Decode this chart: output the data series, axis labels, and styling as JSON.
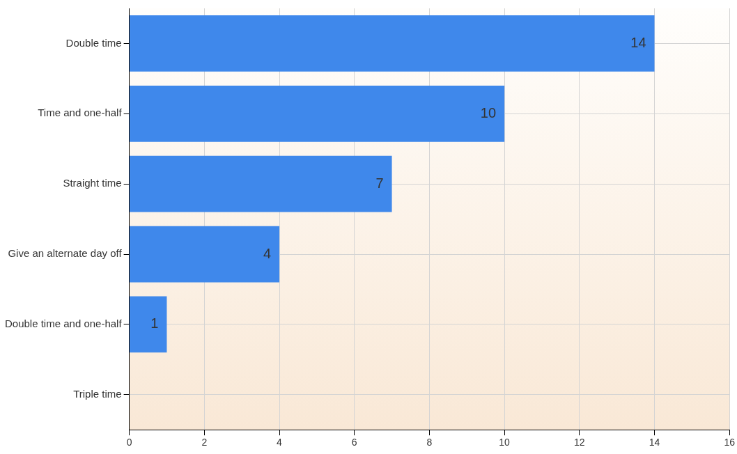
{
  "chart_data": {
    "type": "bar",
    "orientation": "horizontal",
    "categories": [
      "Double time",
      "Time and one-half",
      "Straight time",
      "Give an alternate day off",
      "Double time and one-half",
      "Triple time"
    ],
    "values": [
      14,
      10,
      7,
      4,
      1,
      0
    ],
    "value_labels": [
      "14",
      "10",
      "7",
      "4",
      "1",
      null
    ],
    "color": "#3f88eb",
    "xlim": [
      0,
      16
    ],
    "xticks": [
      0,
      2,
      4,
      6,
      8,
      10,
      12,
      14,
      16
    ],
    "grid": true,
    "legend": false
  }
}
